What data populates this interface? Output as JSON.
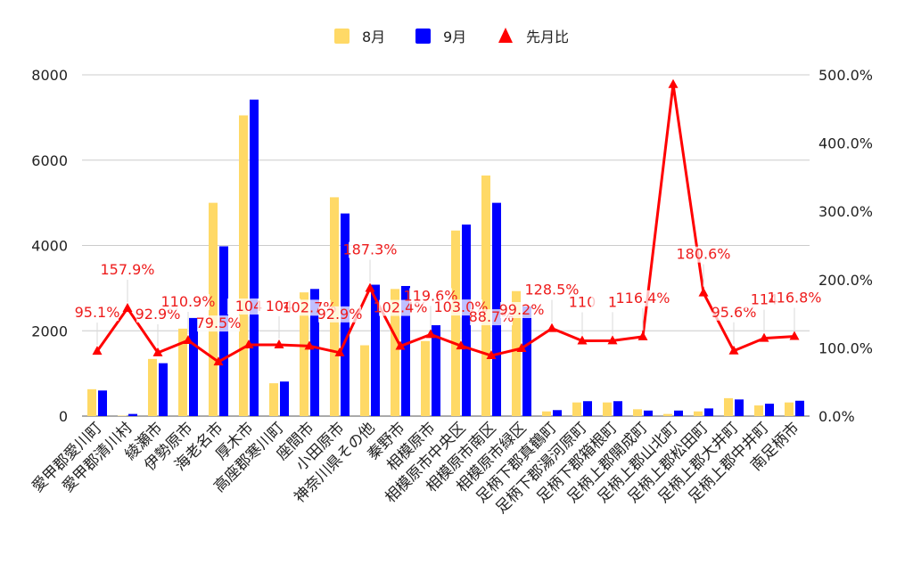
{
  "chart_data": {
    "type": "bar",
    "title": "",
    "categories": [
      "愛甲郡愛川町",
      "愛甲郡清川村",
      "綾瀬市",
      "伊勢原市",
      "海老名市",
      "厚木市",
      "高座郡寒川町",
      "座間市",
      "小田原市",
      "神奈川県その他",
      "秦野市",
      "相模原市",
      "相模原市中央区",
      "相模原市南区",
      "相模原市緑区",
      "足柄下郡真鶴町",
      "足柄下郡湯河原町",
      "足柄下郡箱根町",
      "足柄上郡開成町",
      "足柄上郡山北町",
      "足柄上郡松田町",
      "足柄上郡大井町",
      "足柄上郡中井町",
      "南足柄市"
    ],
    "series": [
      {
        "name": "8月",
        "type": "bar",
        "axis": "left",
        "color": "#ffd966",
        "values": [
          630,
          10,
          1340,
          2050,
          5000,
          7050,
          770,
          2900,
          5130,
          1660,
          2980,
          1760,
          4350,
          5640,
          2930,
          110,
          320,
          320,
          160,
          50,
          110,
          420,
          250,
          320
        ]
      },
      {
        "name": "9月",
        "type": "bar",
        "axis": "left",
        "color": "#0000ff",
        "values": [
          600,
          50,
          1240,
          2300,
          3980,
          7420,
          810,
          2980,
          4750,
          3080,
          3050,
          2130,
          4490,
          5000,
          2570,
          140,
          350,
          350,
          130,
          130,
          180,
          390,
          290,
          360
        ]
      },
      {
        "name": "先月比",
        "type": "line",
        "axis": "right",
        "color": "#ff0000",
        "values": [
          95.1,
          157.9,
          92.9,
          110.9,
          79.5,
          104.4,
          104.4,
          102.7,
          92.9,
          187.3,
          102.4,
          119.6,
          103.0,
          88.7,
          99.2,
          128.5,
          110.3,
          110.5,
          116.4,
          486.0,
          180.6,
          95.6,
          114.0,
          116.8
        ],
        "labels": [
          "95.1%",
          "157.9%",
          "92.9%",
          "110.9%",
          "79.5%",
          "104",
          "104",
          "102.7%",
          "92.9%",
          "187.3%",
          "102.4%",
          "119.6%",
          "103.0%",
          "88.7%",
          "99.2%",
          "128.5%",
          "110",
          "1",
          "116.4%",
          "",
          "180.6%",
          "95.6%",
          "114",
          "116.8%"
        ]
      }
    ],
    "y_left": {
      "min": 0,
      "max": 8000,
      "ticks": [
        "0",
        "2000",
        "4000",
        "6000",
        "8000"
      ]
    },
    "y_right": {
      "min": 0,
      "max": 500,
      "ticks": [
        "0.0%",
        "100.0%",
        "200.0%",
        "300.0%",
        "400.0%",
        "500.0%"
      ]
    },
    "grid": true,
    "legend_position": "top-center"
  }
}
